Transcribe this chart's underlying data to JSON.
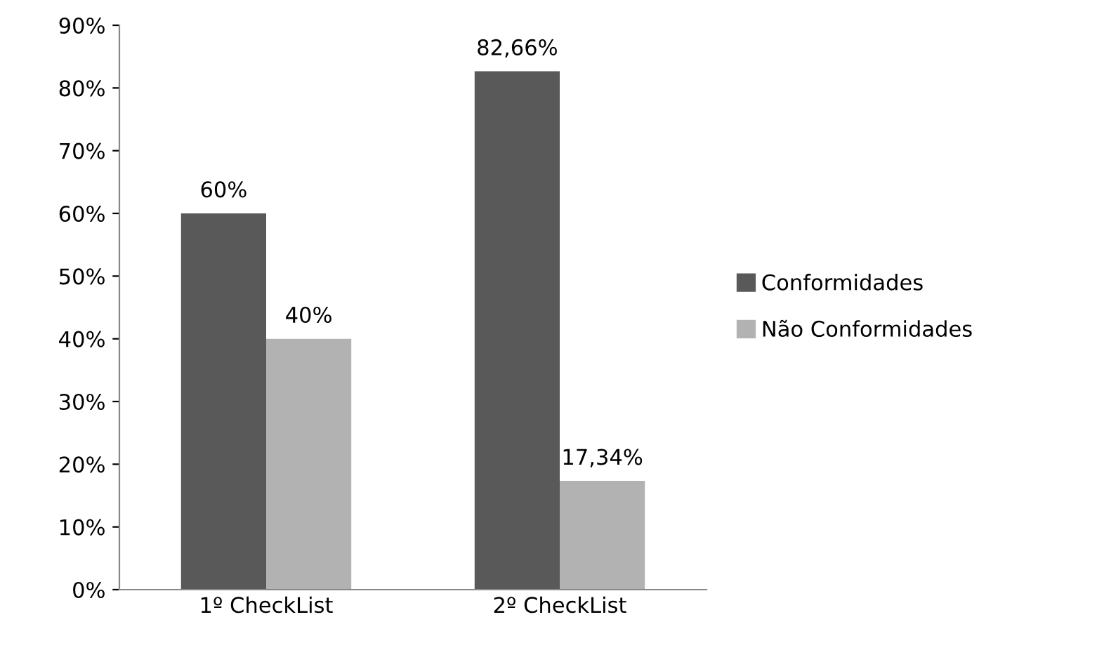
{
  "chart_data": {
    "type": "bar",
    "categories": [
      "1º CheckList",
      "2º CheckList"
    ],
    "series": [
      {
        "name": "Conformidades",
        "color": "#595959",
        "values": [
          60,
          82.66
        ],
        "value_labels": [
          "60%",
          "82,66%"
        ]
      },
      {
        "name": "Não Conformidades",
        "color": "#b2b2b2",
        "values": [
          40,
          17.34
        ],
        "value_labels": [
          "40%",
          "17,34%"
        ]
      }
    ],
    "ylim": [
      0,
      90
    ],
    "yticks": [
      {
        "value": 0,
        "label": "0%"
      },
      {
        "value": 10,
        "label": "10%"
      },
      {
        "value": 20,
        "label": "20%"
      },
      {
        "value": 30,
        "label": "30%"
      },
      {
        "value": 40,
        "label": "40%"
      },
      {
        "value": 50,
        "label": "50%"
      },
      {
        "value": 60,
        "label": "60%"
      },
      {
        "value": 70,
        "label": "70%"
      },
      {
        "value": 80,
        "label": "80%"
      },
      {
        "value": 90,
        "label": "90%"
      }
    ],
    "grid": false,
    "legend": "right"
  }
}
